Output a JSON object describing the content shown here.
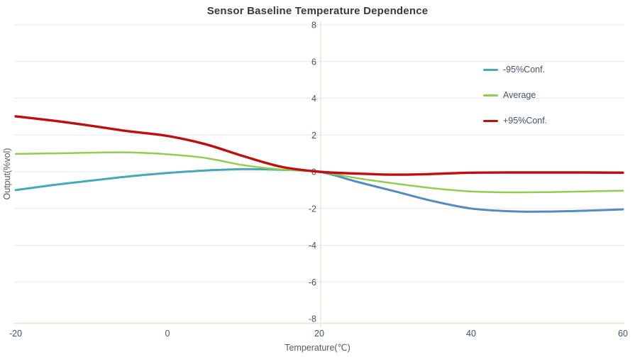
{
  "title": "Sensor Baseline Temperature Dependence",
  "legend": {
    "items": [
      {
        "label": "-95%Conf.",
        "color": "#49a8b6"
      },
      {
        "label": "Average",
        "color": "#8fce4e"
      },
      {
        "label": "+95%Conf.",
        "color": "#bd100e"
      }
    ]
  },
  "axes": {
    "x_title": "Temperature(℃)",
    "y_title": "Output(%vol)",
    "tick_color": "#44546a",
    "gridline_color": "#e9e9e9",
    "axis_line_color": "#ece6d9"
  },
  "chart_data": {
    "type": "line",
    "title": "Sensor Baseline Temperature Dependence",
    "xlabel": "Temperature(℃)",
    "ylabel": "Output(%vol)",
    "xlim": [
      -20,
      60
    ],
    "ylim": [
      -8,
      8
    ],
    "x_ticks": [
      -20,
      0,
      20,
      40,
      60
    ],
    "y_ticks": [
      8,
      6,
      4,
      2,
      0,
      -2,
      -4,
      -6,
      -8
    ],
    "grid": "horizontal-only",
    "legend_position": "right-inside",
    "x": [
      -20,
      -15,
      -10,
      -5,
      0,
      5,
      10,
      15,
      20,
      25,
      30,
      35,
      40,
      45,
      50,
      55,
      60
    ],
    "series": [
      {
        "name": "-95%Conf.",
        "color": "#49a8b6",
        "color_right_half": "#5589c2",
        "values": [
          -1.0,
          -0.72,
          -0.48,
          -0.25,
          -0.07,
          0.07,
          0.14,
          0.11,
          0.0,
          -0.55,
          -1.07,
          -1.6,
          -2.0,
          -2.15,
          -2.17,
          -2.12,
          -2.05
        ]
      },
      {
        "name": "Average",
        "color": "#8fce4e",
        "values": [
          0.97,
          1.0,
          1.04,
          1.05,
          0.95,
          0.75,
          0.36,
          0.12,
          0.0,
          -0.35,
          -0.64,
          -0.9,
          -1.07,
          -1.12,
          -1.11,
          -1.07,
          -1.03
        ]
      },
      {
        "name": "+95%Conf.",
        "color": "#bd100e",
        "values": [
          3.02,
          2.78,
          2.5,
          2.2,
          1.95,
          1.5,
          0.85,
          0.27,
          0.0,
          -0.1,
          -0.16,
          -0.12,
          -0.05,
          -0.04,
          -0.04,
          -0.04,
          -0.05
        ]
      }
    ]
  }
}
